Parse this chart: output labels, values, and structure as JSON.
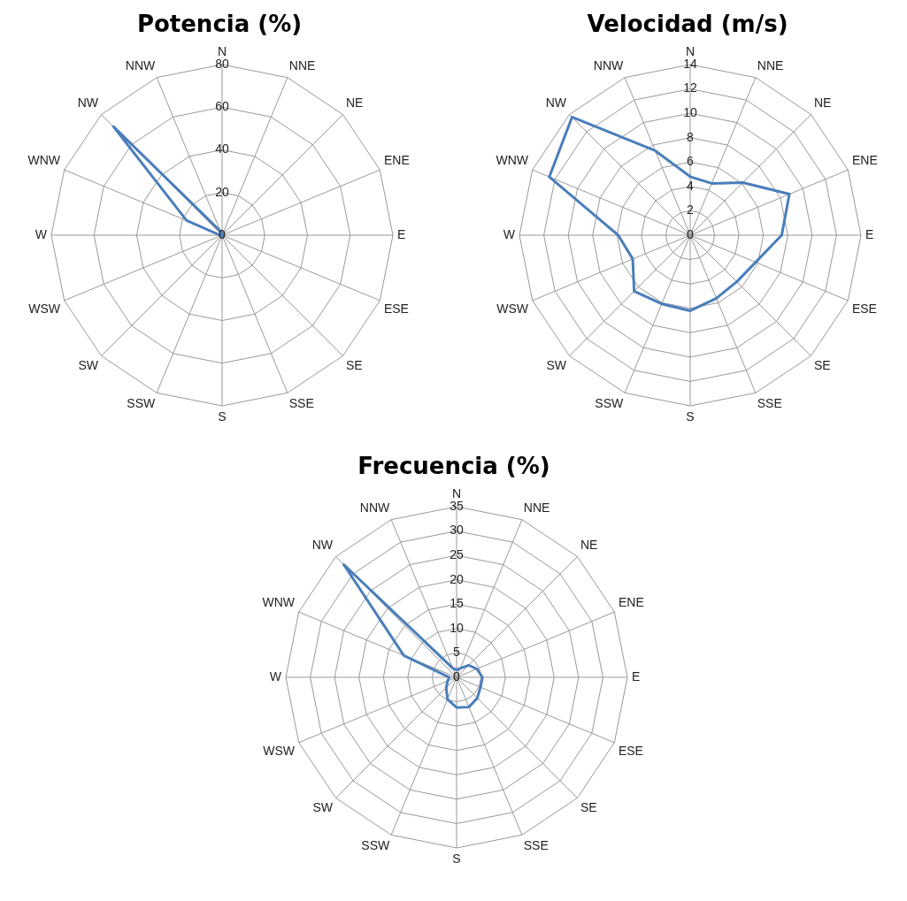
{
  "chart_data": [
    {
      "type": "radar",
      "title": "Potencia (%)",
      "categories": [
        "N",
        "NNE",
        "NE",
        "ENE",
        "E",
        "ESE",
        "SE",
        "SSE",
        "S",
        "SSW",
        "SW",
        "WSW",
        "W",
        "WNW",
        "NW",
        "NNW"
      ],
      "series": [
        {
          "color": "#4a7ebb",
          "values": [
            1,
            0.5,
            0.5,
            0.5,
            0.5,
            0.5,
            0.5,
            0.5,
            0.5,
            0.5,
            0.5,
            0.5,
            1,
            18,
            72,
            2
          ]
        }
      ],
      "ylim": [
        0,
        80
      ],
      "yticks": [
        0,
        20,
        40,
        60,
        80
      ],
      "grid": true,
      "marker": "none",
      "line_style": "solid"
    },
    {
      "type": "radar",
      "title": "Velocidad (m/s)",
      "categories": [
        "N",
        "NNE",
        "NE",
        "ENE",
        "E",
        "ESE",
        "SE",
        "SSE",
        "S",
        "SSW",
        "SW",
        "WSW",
        "W",
        "WNW",
        "NW",
        "NNW"
      ],
      "series": [
        {
          "color": "#4a7ebb",
          "values": [
            4.8,
            4.6,
            6.1,
            8.8,
            7.5,
            5.8,
            5.4,
            5.6,
            6.2,
            6.1,
            6.5,
            5.1,
            5.9,
            12.5,
            13.7,
            7.5
          ]
        }
      ],
      "ylim": [
        0,
        14
      ],
      "yticks": [
        0,
        2,
        4,
        6,
        8,
        10,
        12,
        14
      ],
      "grid": true,
      "marker": "none",
      "line_style": "solid"
    },
    {
      "type": "radar",
      "title": "Frecuencia (%)",
      "categories": [
        "N",
        "NNE",
        "NE",
        "ENE",
        "E",
        "ESE",
        "SE",
        "SSE",
        "S",
        "SSW",
        "SW",
        "WSW",
        "W",
        "WNW",
        "NW",
        "NNW"
      ],
      "series": [
        {
          "color": "#4a7ebb",
          "values": [
            1.5,
            2,
            3.5,
            4.5,
            5.3,
            5.3,
            6,
            6.6,
            6.2,
            4.9,
            3,
            2,
            1.5,
            11.7,
            32.7,
            2
          ]
        }
      ],
      "ylim": [
        0,
        35
      ],
      "yticks": [
        0,
        5,
        10,
        15,
        20,
        25,
        30,
        35
      ],
      "grid": true,
      "marker": "none",
      "line_style": "solid"
    }
  ]
}
